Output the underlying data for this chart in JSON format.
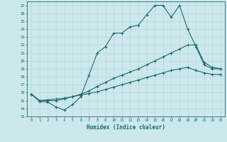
{
  "title": "",
  "xlabel": "Humidex (Indice chaleur)",
  "bg_color": "#cce8ec",
  "line_color": "#1a6b6b",
  "grid_color": "#b8d8dc",
  "xlim": [
    -0.5,
    23.5
  ],
  "ylim": [
    13,
    27.5
  ],
  "yticks": [
    13,
    14,
    15,
    16,
    17,
    18,
    19,
    20,
    21,
    22,
    23,
    24,
    25,
    26,
    27
  ],
  "xticks": [
    0,
    1,
    2,
    3,
    4,
    5,
    6,
    7,
    8,
    9,
    10,
    11,
    12,
    13,
    14,
    15,
    16,
    17,
    18,
    19,
    20,
    21,
    22,
    23
  ],
  "line1": [
    15.8,
    14.9,
    14.8,
    14.2,
    13.8,
    14.5,
    15.5,
    18.2,
    21.0,
    21.8,
    23.5,
    23.5,
    24.3,
    24.5,
    25.8,
    27.0,
    27.0,
    25.5,
    27.0,
    24.0,
    21.8,
    19.5,
    19.0,
    19.0
  ],
  "line2": [
    15.8,
    15.0,
    15.0,
    15.0,
    15.2,
    15.5,
    15.8,
    16.2,
    16.8,
    17.3,
    17.8,
    18.2,
    18.6,
    19.0,
    19.5,
    20.0,
    20.5,
    21.0,
    21.5,
    22.0,
    22.0,
    19.8,
    19.2,
    19.0
  ],
  "line3": [
    15.8,
    15.0,
    15.1,
    15.2,
    15.3,
    15.5,
    15.7,
    15.9,
    16.1,
    16.4,
    16.7,
    17.0,
    17.3,
    17.6,
    17.9,
    18.2,
    18.5,
    18.8,
    19.0,
    19.2,
    18.8,
    18.5,
    18.3,
    18.3
  ]
}
